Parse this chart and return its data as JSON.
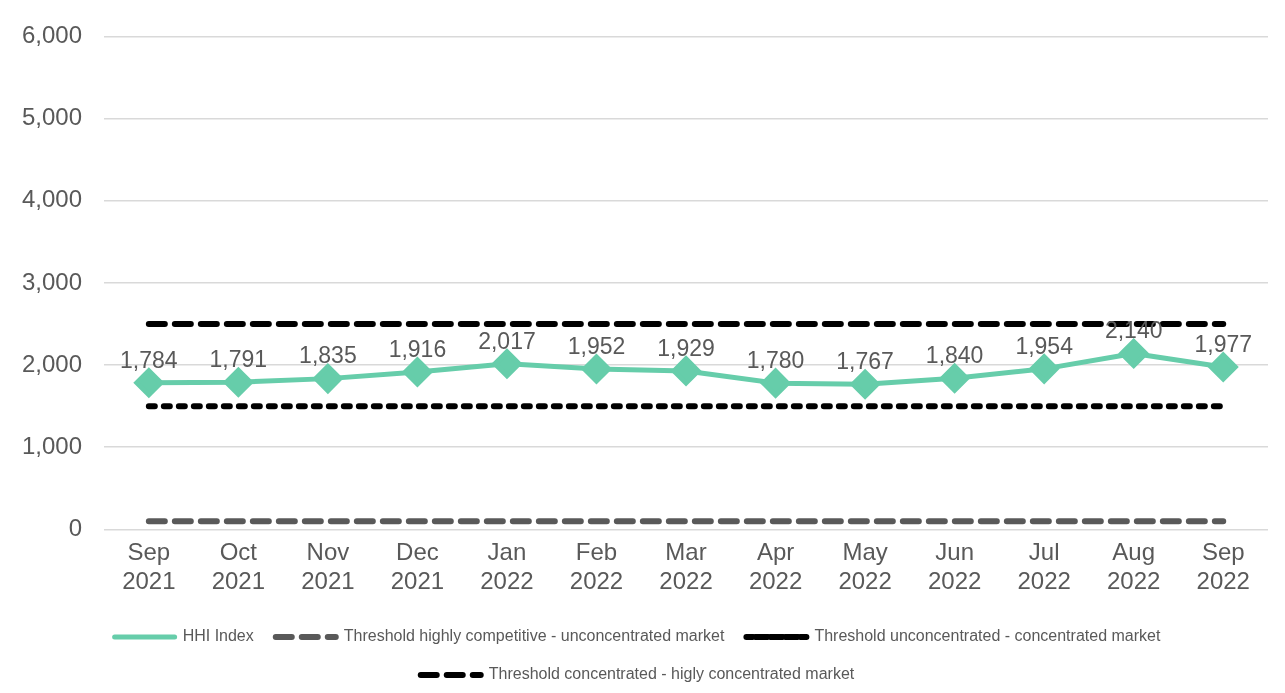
{
  "chart_data": {
    "type": "line",
    "categories": [
      "Sep 2021",
      "Oct 2021",
      "Nov 2021",
      "Dec 2021",
      "Jan 2022",
      "Feb 2022",
      "Mar 2022",
      "Apr 2022",
      "May 2022",
      "Jun 2022",
      "Jul 2022",
      "Aug 2022",
      "Sep 2022"
    ],
    "series": [
      {
        "name": "HHI Index",
        "color": "#66cdaa",
        "marker": "diamond",
        "line_style": "solid",
        "values": [
          1784,
          1791,
          1835,
          1916,
          2017,
          1952,
          1929,
          1780,
          1767,
          1840,
          1954,
          2140,
          1977
        ],
        "value_labels": [
          "1,784",
          "1,791",
          "1,835",
          "1,916",
          "2,017",
          "1,952",
          "1,929",
          "1,780",
          "1,767",
          "1,840",
          "1,954",
          "2,140",
          "1,977"
        ]
      },
      {
        "name": "Threshold highly competitive - unconcentrated market",
        "color": "#595959",
        "marker": "none",
        "line_style": "dashed",
        "values": [
          100,
          100,
          100,
          100,
          100,
          100,
          100,
          100,
          100,
          100,
          100,
          100,
          100
        ]
      },
      {
        "name": "Threshold unconcentrated - concentrated market",
        "color": "#000000",
        "marker": "none",
        "line_style": "dotted",
        "values": [
          1500,
          1500,
          1500,
          1500,
          1500,
          1500,
          1500,
          1500,
          1500,
          1500,
          1500,
          1500,
          1500
        ]
      },
      {
        "name": "Threshold concentrated - higly concentrated market",
        "color": "#000000",
        "marker": "none",
        "line_style": "dashed",
        "values": [
          2500,
          2500,
          2500,
          2500,
          2500,
          2500,
          2500,
          2500,
          2500,
          2500,
          2500,
          2500,
          2500
        ]
      }
    ],
    "ylim": [
      0,
      6000
    ],
    "yticks": [
      {
        "value": 0,
        "label": "0"
      },
      {
        "value": 1000,
        "label": "1,000"
      },
      {
        "value": 2000,
        "label": "2,000"
      },
      {
        "value": 3000,
        "label": "3,000"
      },
      {
        "value": 4000,
        "label": "4,000"
      },
      {
        "value": 5000,
        "label": "5,000"
      },
      {
        "value": 6000,
        "label": "6,000"
      }
    ],
    "grid": "y",
    "legend": "bottom"
  }
}
